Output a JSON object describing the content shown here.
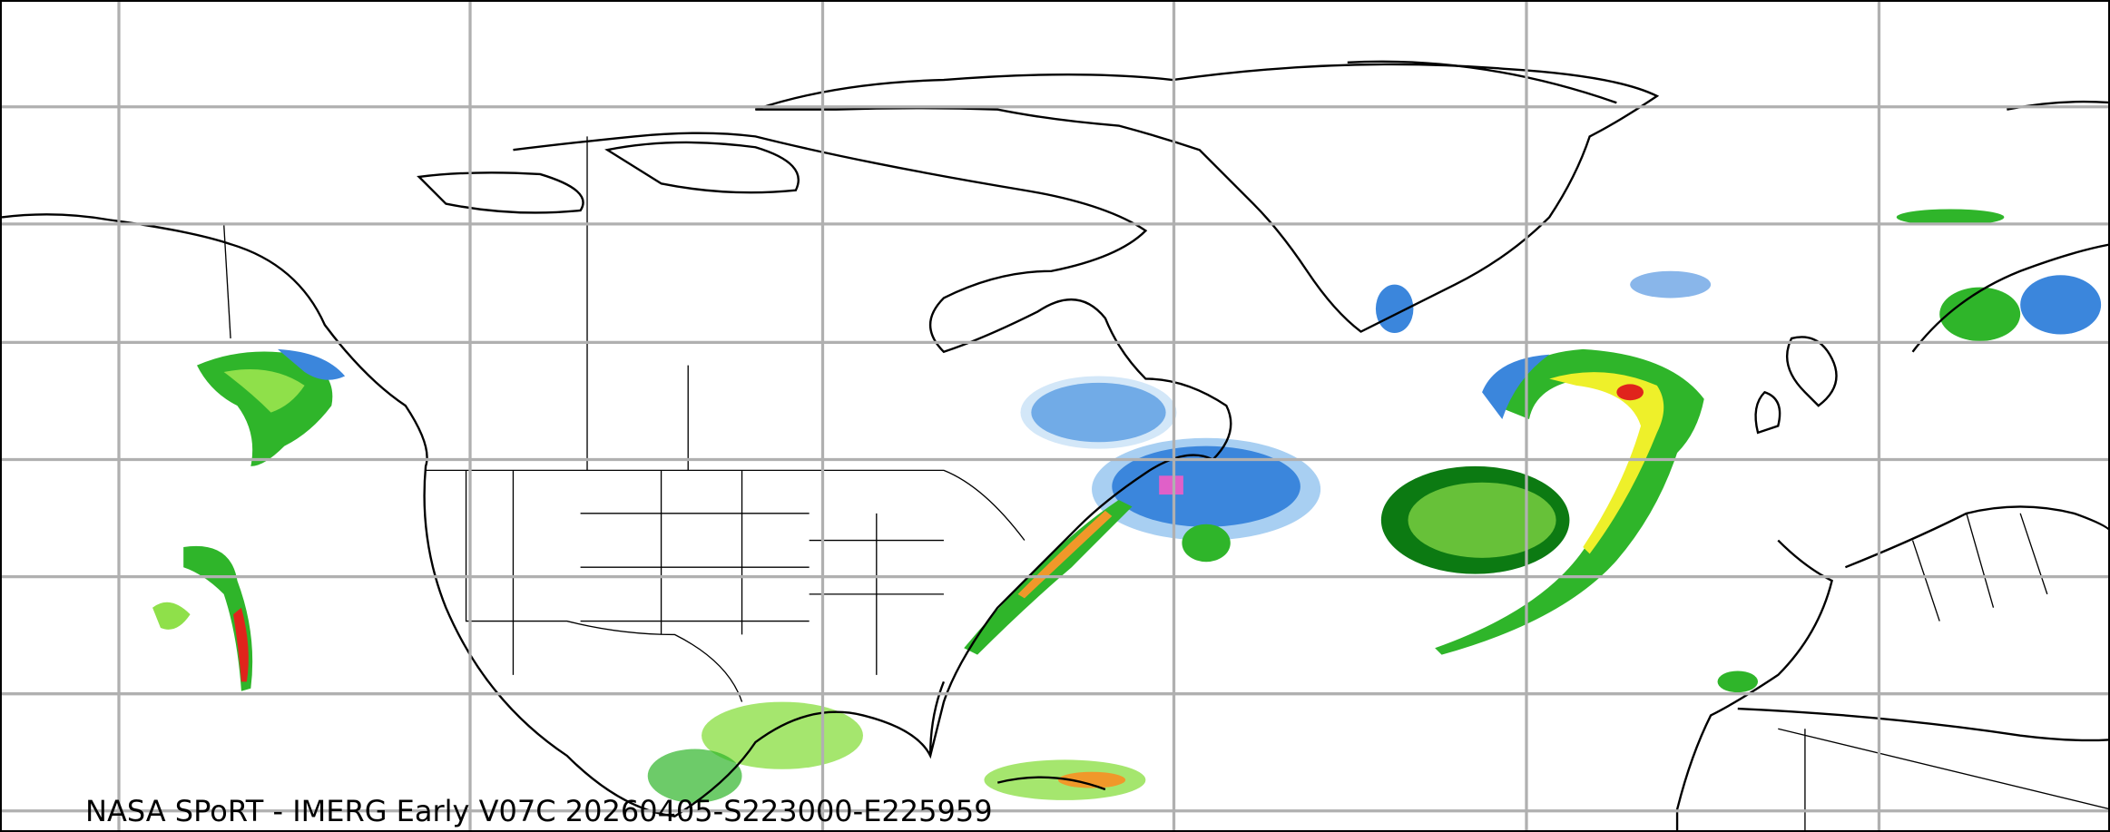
{
  "map": {
    "caption": "NASA SPoRT - IMERG Early V07C 20260405-S223000-E225959",
    "product": "IMERG Early V07C",
    "region": "North America / North Atlantic / Europe",
    "gridlines": true,
    "colors": {
      "light_blue": "#a8cff2",
      "blue": "#3b86dc",
      "dark_green": "#0c7a12",
      "green": "#2fb52a",
      "light_green": "#8fe04a",
      "yellow": "#eef02a",
      "orange": "#f0982a",
      "red": "#e0241c",
      "pink": "#e060c8",
      "grid": "#b0b0b0"
    }
  }
}
